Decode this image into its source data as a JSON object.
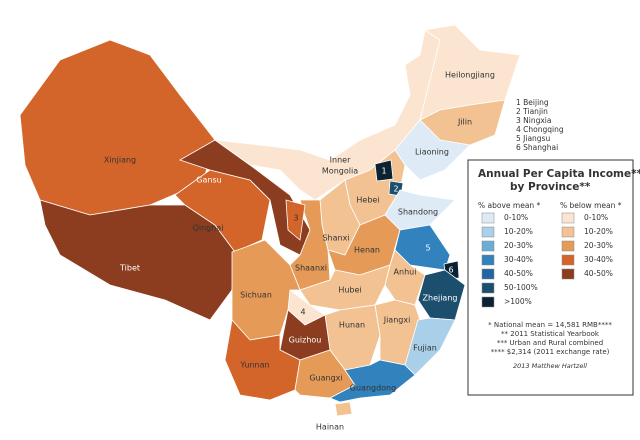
{
  "title": [
    "Annual Per Capita Income***",
    "by Province**"
  ],
  "legend": {
    "above": {
      "heading": "% above mean *",
      "classes": [
        {
          "label": "0-10%",
          "color": "#deebf7"
        },
        {
          "label": "10-20%",
          "color": "#a9cfe9"
        },
        {
          "label": "20-30%",
          "color": "#6aaed6"
        },
        {
          "label": "30-40%",
          "color": "#3182bd"
        },
        {
          "label": "40-50%",
          "color": "#2265a0"
        },
        {
          "label": "50-100%",
          "color": "#1c4f6e"
        },
        {
          "label": ">100%",
          "color": "#0b2233"
        }
      ]
    },
    "below": {
      "heading": "% below mean *",
      "classes": [
        {
          "label": "0-10%",
          "color": "#fbe5d0"
        },
        {
          "label": "10-20%",
          "color": "#f2c293"
        },
        {
          "label": "20-30%",
          "color": "#e59a58"
        },
        {
          "label": "30-40%",
          "color": "#d4652a"
        },
        {
          "label": "40-50%",
          "color": "#8c3c1f"
        }
      ]
    }
  },
  "notes": [
    "* National mean = 14,581 RMB****",
    "** 2011 Statistical Yearbook",
    "*** Urban and Rural combined",
    "**** $2,314 (2011 exchange rate)"
  ],
  "credit": "2013 Matthew Hartzell",
  "key": [
    "1 Beijing",
    "2 Tianjin",
    "3 Ningxia",
    "4 Chongqing",
    "5 Jiangsu",
    "6 Shanghai"
  ],
  "provinces": [
    {
      "label": "Xinjiang",
      "group": "below",
      "class": 3
    },
    {
      "label": "Tibet",
      "group": "below",
      "class": 4
    },
    {
      "label": "Qinghai",
      "group": "below",
      "class": 3
    },
    {
      "label": "Gansu",
      "group": "below",
      "class": 4
    },
    {
      "label": [
        "Inner",
        "Mongolia"
      ],
      "group": "below",
      "class": 0
    },
    {
      "label": "Heilongjiang",
      "group": "below",
      "class": 0
    },
    {
      "label": "Jilin",
      "group": "below",
      "class": 1
    },
    {
      "label": "Liaoning",
      "group": "above",
      "class": 0
    },
    {
      "label": "Hebei",
      "group": "below",
      "class": 1
    },
    {
      "label": "1",
      "group": "above",
      "class": 6
    },
    {
      "label": "2",
      "group": "above",
      "class": 5
    },
    {
      "label": "Shanxi",
      "group": "below",
      "class": 1
    },
    {
      "label": "Shaanxi",
      "group": "below",
      "class": 2
    },
    {
      "label": "3",
      "group": "below",
      "class": 3
    },
    {
      "label": "Shandong",
      "group": "above",
      "class": 0
    },
    {
      "label": "Henan",
      "group": "below",
      "class": 2
    },
    {
      "label": "5",
      "group": "above",
      "class": 3
    },
    {
      "label": "Anhui",
      "group": "below",
      "class": 1
    },
    {
      "label": "6",
      "group": "above",
      "class": 6
    },
    {
      "label": "Zhejiang",
      "group": "above",
      "class": 5
    },
    {
      "label": "Hubei",
      "group": "below",
      "class": 1
    },
    {
      "label": "4",
      "group": "below",
      "class": 0
    },
    {
      "label": "Sichuan",
      "group": "below",
      "class": 2
    },
    {
      "label": "Hunan",
      "group": "below",
      "class": 1
    },
    {
      "label": "Jiangxi",
      "group": "below",
      "class": 1
    },
    {
      "label": "Fujian",
      "group": "above",
      "class": 1
    },
    {
      "label": "Guizhou",
      "group": "below",
      "class": 4
    },
    {
      "label": "Yunnan",
      "group": "below",
      "class": 3
    },
    {
      "label": "Guangxi",
      "group": "below",
      "class": 2
    },
    {
      "label": "Guangdong",
      "group": "above",
      "class": 3
    },
    {
      "label": "Hainan",
      "group": "below",
      "class": 1
    }
  ]
}
